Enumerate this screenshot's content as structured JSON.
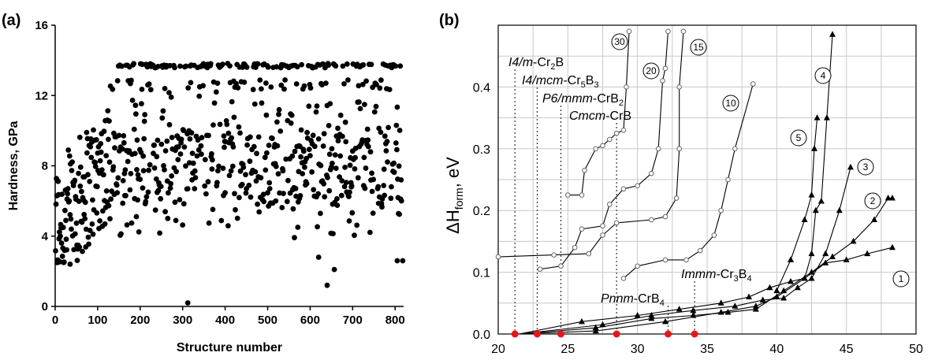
{
  "chart_data": [
    {
      "panel": "(a)",
      "type": "scatter",
      "xlabel": "Structure number",
      "ylabel": "Hardness, GPa",
      "xlim": [
        0,
        820
      ],
      "ylim": [
        0,
        16
      ],
      "xticks": [
        "0",
        "100",
        "200",
        "300",
        "400",
        "500",
        "600",
        "700",
        "800"
      ],
      "yticks": [
        "0",
        "4",
        "8",
        "12",
        "16"
      ],
      "grid": false,
      "marker_color": "#000000",
      "outliers": [
        [
          312,
          0.2
        ],
        [
          640,
          1.2
        ],
        [
          657,
          2.1
        ],
        [
          620,
          2.8
        ],
        [
          35,
          2.4
        ],
        [
          805,
          2.6
        ],
        [
          818,
          2.6
        ]
      ],
      "ceiling_value": 13.7,
      "upper_band_value": 12.6
    },
    {
      "panel": "(b)",
      "type": "line",
      "xlabel": "",
      "ylabel": "ΔH",
      "ylabel_sub": "form",
      "ylabel_unit": ", eV",
      "xlim": [
        20,
        50
      ],
      "ylim": [
        0,
        0.5
      ],
      "xticks": [
        "20",
        "25",
        "30",
        "35",
        "40",
        "45",
        "50"
      ],
      "yticks": [
        "0.0",
        "0.1",
        "0.2",
        "0.3",
        "0.4"
      ],
      "grid": true,
      "grid_color": "#c8c8c8",
      "phases": [
        {
          "x": 21.2,
          "italic": "I4/m",
          "formula": "-Cr",
          "sub1": "2",
          "formula2": "B",
          "sub2": ""
        },
        {
          "x": 22.8,
          "italic": "I4/mcm",
          "formula": "-Cr",
          "sub1": "5",
          "formula2": "B",
          "sub2": "3"
        },
        {
          "x": 24.5,
          "italic": "P6/mmm",
          "formula": "-CrB",
          "sub1": "2",
          "formula2": "",
          "sub2": ""
        },
        {
          "x": 28.5,
          "italic": "Cmcm",
          "formula": "-CrB",
          "sub1": "",
          "formula2": "",
          "sub2": ""
        },
        {
          "x": 32.2,
          "italic": "Pnnm",
          "formula": "-CrB",
          "sub1": "4",
          "formula2": "",
          "sub2": ""
        },
        {
          "x": 34.1,
          "italic": "Immm",
          "formula": "-Cr",
          "sub1": "3",
          "formula2": "B",
          "sub2": "4"
        }
      ],
      "phase_marker_color": "#e8141c",
      "series": [
        {
          "name": "1",
          "marker": "triangle",
          "points": [
            [
              21.5,
              0.0
            ],
            [
              27.0,
              0.005
            ],
            [
              32.0,
              0.02
            ],
            [
              36.0,
              0.035
            ],
            [
              38.5,
              0.045
            ],
            [
              40.0,
              0.06
            ],
            [
              42.0,
              0.09
            ],
            [
              43.5,
              0.115
            ],
            [
              45.0,
              0.12
            ],
            [
              46.5,
              0.13
            ],
            [
              48.3,
              0.14
            ]
          ]
        },
        {
          "name": "2",
          "marker": "triangle",
          "points": [
            [
              21.5,
              0.0
            ],
            [
              27.0,
              0.01
            ],
            [
              31.0,
              0.025
            ],
            [
              34.0,
              0.03
            ],
            [
              36.5,
              0.035
            ],
            [
              38.5,
              0.04
            ],
            [
              40.5,
              0.07
            ],
            [
              42.5,
              0.1
            ],
            [
              44.0,
              0.125
            ],
            [
              45.5,
              0.15
            ],
            [
              47.0,
              0.185
            ],
            [
              48.0,
              0.22
            ],
            [
              48.3,
              0.22
            ]
          ]
        },
        {
          "name": "3",
          "marker": "triangle",
          "points": [
            [
              21.5,
              0.0
            ],
            [
              27.5,
              0.015
            ],
            [
              31.0,
              0.03
            ],
            [
              34.0,
              0.038
            ],
            [
              37.0,
              0.045
            ],
            [
              39.0,
              0.055
            ],
            [
              40.5,
              0.058
            ],
            [
              41.5,
              0.075
            ],
            [
              42.5,
              0.09
            ],
            [
              43.5,
              0.13
            ],
            [
              44.5,
              0.2
            ],
            [
              45.3,
              0.27
            ]
          ]
        },
        {
          "name": "4",
          "marker": "triangle",
          "points": [
            [
              21.5,
              0.0
            ],
            [
              26.0,
              0.02
            ],
            [
              30.0,
              0.03
            ],
            [
              33.0,
              0.04
            ],
            [
              36.0,
              0.05
            ],
            [
              38.0,
              0.06
            ],
            [
              39.5,
              0.075
            ],
            [
              41.0,
              0.085
            ],
            [
              42.0,
              0.09
            ],
            [
              42.5,
              0.13
            ],
            [
              42.8,
              0.2
            ],
            [
              43.2,
              0.215
            ],
            [
              43.6,
              0.35
            ],
            [
              44.0,
              0.485
            ]
          ]
        },
        {
          "name": "5",
          "marker": "triangle",
          "points": [
            [
              40.0,
              0.07
            ],
            [
              41.0,
              0.12
            ],
            [
              42.0,
              0.185
            ],
            [
              42.5,
              0.225
            ],
            [
              42.7,
              0.3
            ],
            [
              42.9,
              0.35
            ]
          ]
        },
        {
          "name": "10",
          "marker": "circle",
          "points": [
            [
              29.0,
              0.09
            ],
            [
              30.0,
              0.11
            ],
            [
              32.0,
              0.12
            ],
            [
              33.5,
              0.12
            ],
            [
              34.5,
              0.135
            ],
            [
              35.5,
              0.16
            ],
            [
              36.0,
              0.2
            ],
            [
              36.5,
              0.25
            ],
            [
              37.0,
              0.3
            ],
            [
              38.3,
              0.405
            ]
          ]
        },
        {
          "name": "15",
          "marker": "circle",
          "points": [
            [
              20.0,
              0.125
            ],
            [
              24.0,
              0.128
            ],
            [
              26.5,
              0.13
            ],
            [
              27.5,
              0.16
            ],
            [
              28.5,
              0.18
            ],
            [
              31.0,
              0.185
            ],
            [
              32.0,
              0.19
            ],
            [
              32.8,
              0.22
            ],
            [
              33.0,
              0.3
            ],
            [
              33.0,
              0.4
            ],
            [
              33.3,
              0.49
            ]
          ]
        },
        {
          "name": "20",
          "marker": "circle",
          "points": [
            [
              23.0,
              0.105
            ],
            [
              24.5,
              0.11
            ],
            [
              25.5,
              0.14
            ],
            [
              26.0,
              0.17
            ],
            [
              27.5,
              0.175
            ],
            [
              28.0,
              0.21
            ],
            [
              29.0,
              0.235
            ],
            [
              30.0,
              0.24
            ],
            [
              31.0,
              0.26
            ],
            [
              31.5,
              0.3
            ],
            [
              31.8,
              0.41
            ],
            [
              32.0,
              0.43
            ],
            [
              32.2,
              0.49
            ]
          ]
        },
        {
          "name": "30",
          "marker": "circle",
          "points": [
            [
              25.0,
              0.225
            ],
            [
              26.0,
              0.225
            ],
            [
              26.2,
              0.265
            ],
            [
              27.0,
              0.3
            ],
            [
              27.5,
              0.305
            ],
            [
              28.0,
              0.315
            ],
            [
              28.5,
              0.325
            ],
            [
              29.0,
              0.33
            ],
            [
              29.2,
              0.4
            ],
            [
              29.4,
              0.49
            ]
          ]
        }
      ]
    }
  ]
}
